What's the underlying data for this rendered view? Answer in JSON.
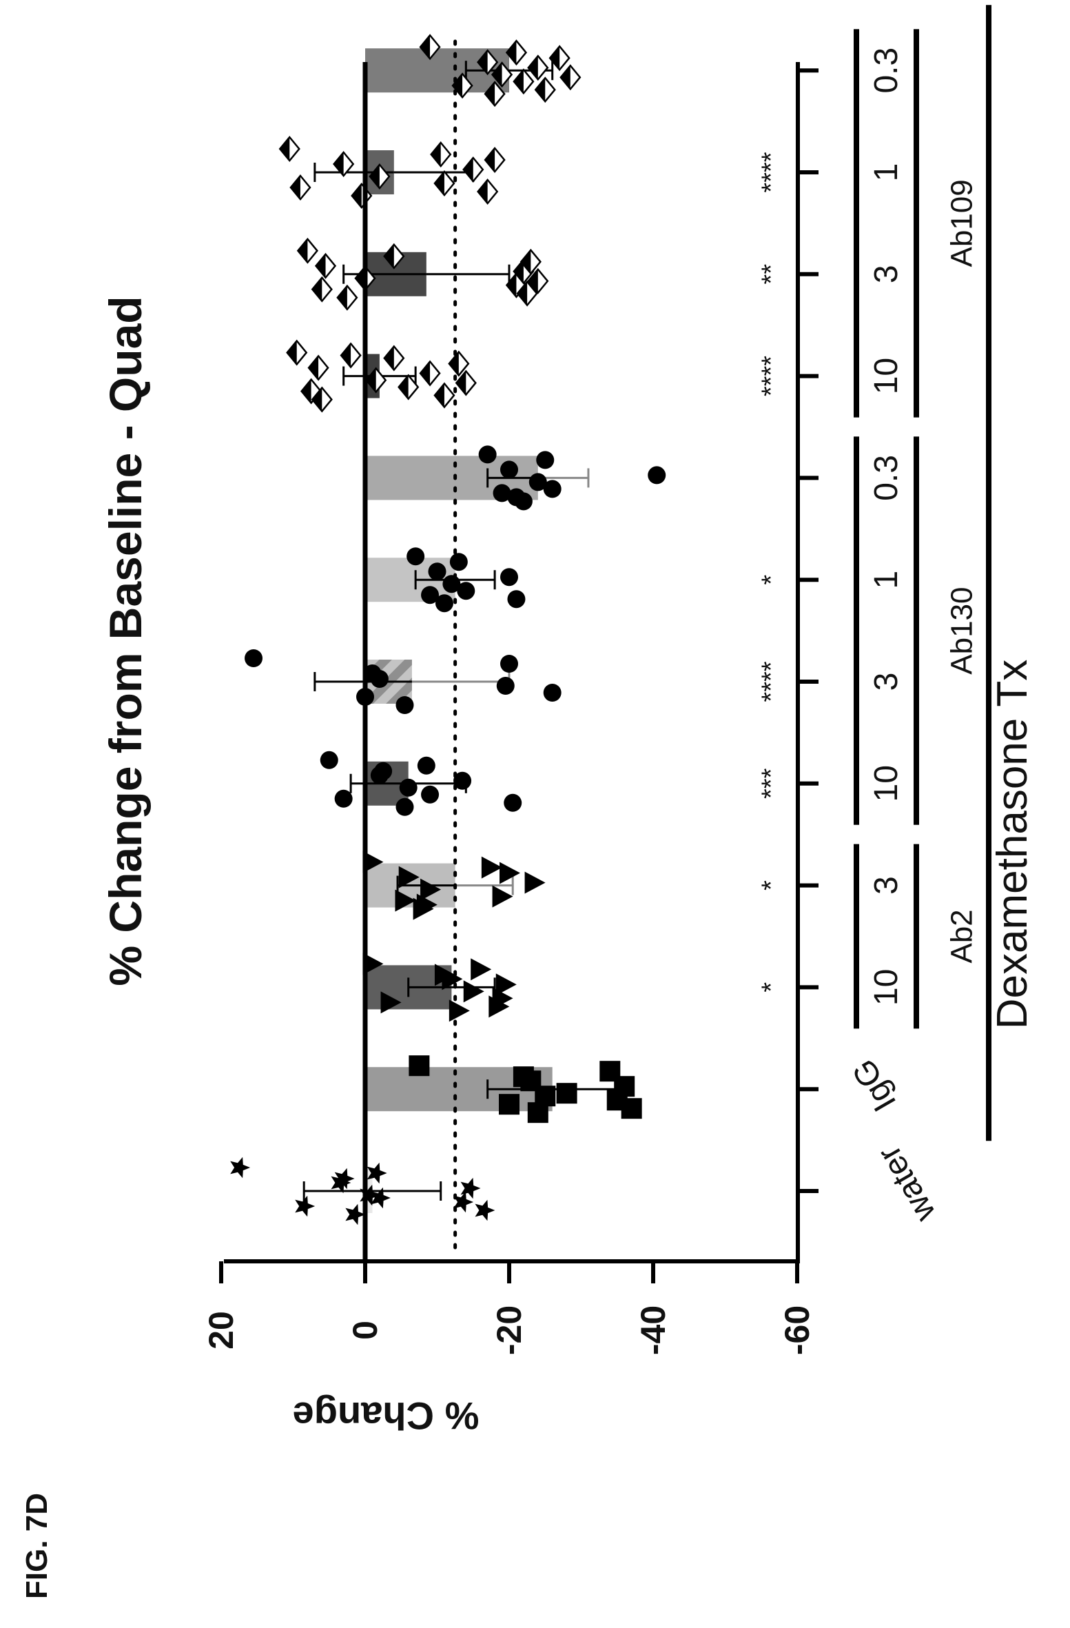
{
  "figure_label": "FIG. 7D",
  "chart_data": {
    "type": "bar",
    "orientation": "rotated",
    "title": "% Change from Baseline - Quad",
    "ylabel": "% Change",
    "xlabel": "",
    "ylim": [
      -60,
      20
    ],
    "yticks": [
      20,
      0,
      -20,
      -40,
      -60
    ],
    "reference_line": -12.5,
    "categories": [
      "water",
      "IgG",
      "10",
      "3",
      "10",
      "3",
      "1",
      "0.3",
      "10",
      "3",
      "1",
      "0.3"
    ],
    "groups": [
      {
        "label": "Ab2",
        "indices": [
          2,
          3
        ]
      },
      {
        "label": "Ab130",
        "indices": [
          4,
          5,
          6,
          7
        ]
      },
      {
        "label": "Ab109",
        "indices": [
          8,
          9,
          10,
          11
        ]
      }
    ],
    "treatment_label": "Dexamethasone Tx",
    "treatment_indices": [
      1,
      11
    ],
    "significance": [
      "",
      "",
      "*",
      "*",
      "***",
      "****",
      "*",
      "",
      "****",
      "**",
      "****",
      ""
    ],
    "series": [
      {
        "mean": -1,
        "error": 9.5,
        "marker": "star",
        "fill": "#e8e8e8",
        "points": [
          17.5,
          8.5,
          3.5,
          1.5,
          -0.5,
          -1.5,
          -13.5,
          -14.5,
          -16.5,
          3,
          -2
        ]
      },
      {
        "mean": -26,
        "error": 9,
        "marker": "square",
        "fill": "#9a9a9a",
        "points": [
          -7.5,
          -20,
          -23,
          -24,
          -28,
          -34,
          -35,
          -36,
          -37,
          -22,
          -25
        ]
      },
      {
        "mean": -12,
        "error": 6,
        "marker": "triangle",
        "fill": "#5e5e5e",
        "points": [
          -1,
          -3.5,
          -12,
          -13,
          -15,
          -16,
          -19,
          -19.5,
          -18.5,
          -11
        ]
      },
      {
        "mean": -12.5,
        "error": 8,
        "marker": "triangle",
        "fill": "#bdbdbd",
        "points": [
          -1,
          -5.5,
          -6,
          -8,
          -9,
          -17.5,
          -19,
          -23.5,
          -8.5,
          -20
        ]
      },
      {
        "mean": -6,
        "error": 8,
        "marker": "circle",
        "fill": "#575757",
        "points": [
          5,
          3,
          -2,
          -5.5,
          -6,
          -8.5,
          -9,
          -13.5,
          -20.5,
          -2.5
        ]
      },
      {
        "mean": -6.5,
        "error": 13.5,
        "marker": "circle",
        "fill": "#b0b0b0",
        "points": [
          15.5,
          0,
          -1,
          -5.5,
          -19.5,
          -20,
          -26,
          -2
        ]
      },
      {
        "mean": -12.5,
        "error": 5.5,
        "marker": "circle",
        "fill": "#c4c4c4",
        "points": [
          -7,
          -9,
          -10,
          -11,
          -12,
          -13,
          -14,
          -20,
          -21
        ]
      },
      {
        "mean": -24,
        "error": 7,
        "marker": "circle",
        "fill": "#a9a9a9",
        "points": [
          -17,
          -19,
          -20,
          -22,
          -24,
          -25,
          -26,
          -40.5,
          -21
        ]
      },
      {
        "mean": -2,
        "error": 5,
        "marker": "diamond",
        "fill": "#3e3e3e",
        "points": [
          9.5,
          7.5,
          6.5,
          6,
          -1.5,
          -4,
          -6,
          -9,
          -11,
          -13,
          -14,
          2
        ]
      },
      {
        "mean": -8.5,
        "error": 11.5,
        "marker": "diamond",
        "fill": "#474747",
        "points": [
          8,
          6,
          5.5,
          2.5,
          0,
          -4,
          -21,
          -22,
          -22.5,
          -23,
          -24
        ]
      },
      {
        "mean": -4,
        "error": 11,
        "marker": "diamond",
        "fill": "#616161",
        "points": [
          10.5,
          9,
          3,
          0.5,
          -2,
          -10.5,
          -11,
          -15,
          -17,
          -18
        ]
      },
      {
        "mean": -20,
        "error": 6,
        "marker": "diamond",
        "fill": "#7d7d7d",
        "points": [
          -9,
          -13.5,
          -17,
          -18,
          -19,
          -21,
          -22,
          -24,
          -25,
          -27,
          -28.5
        ]
      }
    ]
  }
}
